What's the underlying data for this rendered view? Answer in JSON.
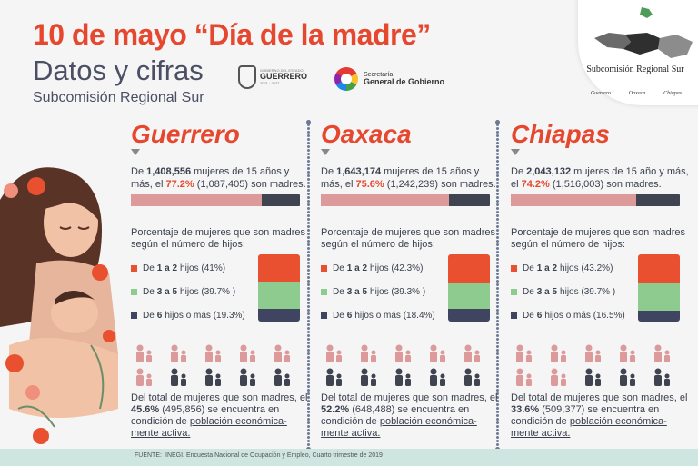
{
  "header": {
    "title": "10 de mayo “Día de la madre”",
    "subtitle": "Datos y cifras",
    "org": "Subcomisión Regional Sur"
  },
  "logos": {
    "guerrero": {
      "small": "GOBIERNO DEL ESTADO",
      "name": "GUERRERO",
      "tagline": "2021 · 2027"
    },
    "secretaria": {
      "line1": "Secretaría",
      "line2": "General de Gobierno"
    }
  },
  "badge": {
    "title": "Subcomisión Regional Sur",
    "states": [
      "Guerrero",
      "Oaxaca",
      "Chiapas"
    ]
  },
  "colors": {
    "accent": "#e5482f",
    "seg_1a2": "#e8502f",
    "seg_3a5": "#8ecb8e",
    "seg_6mas": "#3f4560",
    "mothers": "#dc9a9a",
    "nonmothers": "#3f4450",
    "active_person": "#3f4450",
    "inactive_person": "#dc9a9a"
  },
  "states": [
    {
      "name": "Guerrero",
      "women_pre": "De ",
      "women_total": "1,408,556",
      "women_mid": " mujeres de 15 años y más, el ",
      "mothers_pct": "77.2%",
      "mothers_rest": " (1,087,405) son madres.",
      "mothers_fraction": 0.772,
      "pct_title": "Porcentaje de mujeres que son madres según el número de hijos:",
      "legend": [
        {
          "pre": "De",
          "bold": "1 a 2",
          "post": "hijos (41%)",
          "value": 41
        },
        {
          "pre": "De",
          "bold": "3 a 5",
          "post": "hijos (39.7% )",
          "value": 39.7
        },
        {
          "pre": "De",
          "bold": "6",
          "post": "hijos o más (19.3%)",
          "value": 19.3
        }
      ],
      "active_pre": "Del total de mujeres que son madres, el ",
      "active_pct": "45.6%",
      "active_post": " (495,856) se encuentra en condición de ",
      "active_under": "población económica-mente activa.",
      "active_icons": 4
    },
    {
      "name": "Oaxaca",
      "women_pre": "De ",
      "women_total": "1,643,174",
      "women_mid": " mujeres de 15 años y más, el ",
      "mothers_pct": "75.6%",
      "mothers_rest": " (1,242,239) son madres.",
      "mothers_fraction": 0.756,
      "pct_title": "Porcentaje de mujeres que son madres según el número de hijos:",
      "legend": [
        {
          "pre": "De",
          "bold": "1 a 2",
          "post": "hijos (42.3%)",
          "value": 42.3
        },
        {
          "pre": "De",
          "bold": "3 a 5",
          "post": "hijos (39.3% )",
          "value": 39.3
        },
        {
          "pre": "De",
          "bold": "6",
          "post": "hijos o más (18.4%)",
          "value": 18.4
        }
      ],
      "active_pre": "Del total de mujeres que son madres, el ",
      "active_pct": "52.2%",
      "active_post": " (648,488) se encuentra en condición de ",
      "active_under": "población económica-mente activa.",
      "active_icons": 5
    },
    {
      "name": "Chiapas",
      "women_pre": "De ",
      "women_total": "2,043,132",
      "women_mid": " mujeres de 15 año y más, el ",
      "mothers_pct": "74.2%",
      "mothers_rest": " (1,516,003) son madres.",
      "mothers_fraction": 0.742,
      "pct_title": "Porcentaje de mujeres que son madres según el número de hijos:",
      "legend": [
        {
          "pre": "De",
          "bold": "1 a 2",
          "post": "hijos (43.2%)",
          "value": 43.2
        },
        {
          "pre": "De",
          "bold": "3 a 5",
          "post": "hijos (39.7% )",
          "value": 39.7
        },
        {
          "pre": "De",
          "bold": "6",
          "post": "hijos o más (16.5%)",
          "value": 16.5
        }
      ],
      "active_pre": "Del total de mujeres que son madres, el ",
      "active_pct": "33.6%",
      "active_post": " (509,377) se encuentra en condición de ",
      "active_under": "población económica-mente activa.",
      "active_icons": 3
    }
  ],
  "footer": {
    "label": "FUENTE:",
    "source": "INEGI. Encuesta Nacional de Ocupación y Empleo, Cuarto trimestre de 2019"
  }
}
